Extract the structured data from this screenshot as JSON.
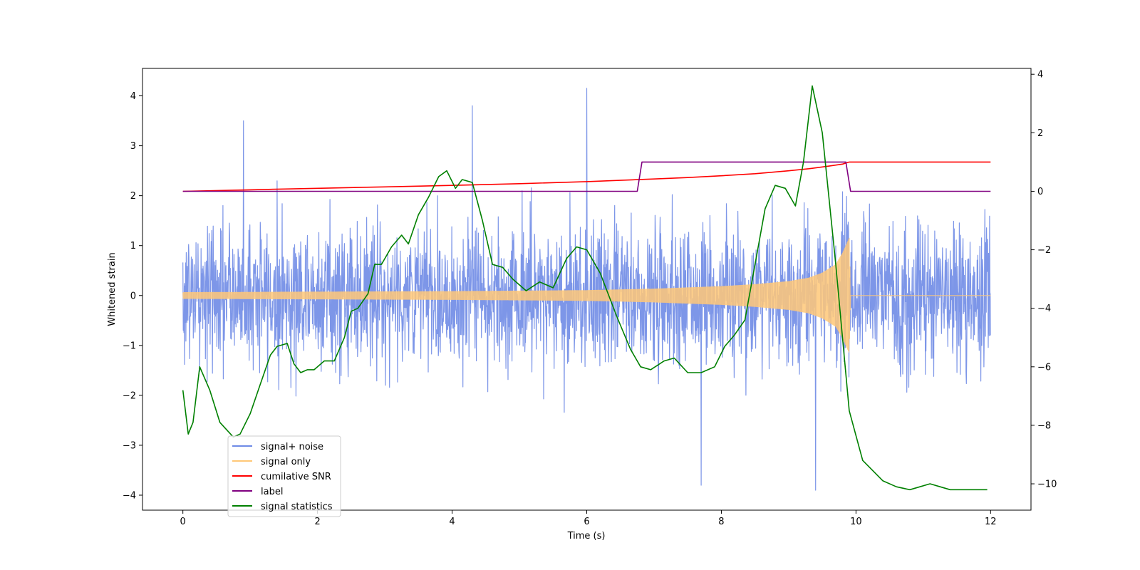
{
  "chart_data": {
    "type": "line",
    "xlabel": "Time (s)",
    "ylabel": "Whitened strain",
    "ylabel_right": "",
    "xlim": [
      -0.6,
      12.6
    ],
    "ylim": [
      -4.3,
      4.55
    ],
    "ylim_right": [
      -10.9,
      4.2
    ],
    "x_ticks": [
      0,
      2,
      4,
      6,
      8,
      10,
      12
    ],
    "y_ticks": [
      -4,
      -3,
      -2,
      -1,
      0,
      1,
      2,
      3,
      4
    ],
    "y_ticks_right": [
      -10,
      -8,
      -6,
      -4,
      -2,
      0,
      2,
      4
    ],
    "grid": false,
    "legend_position": "lower-left",
    "legend": [
      {
        "label": "signal+ noise",
        "color": "#6f8be6"
      },
      {
        "label": "signal only",
        "color": "#ffc878"
      },
      {
        "label": "cumilative SNR",
        "color": "#ff0000"
      },
      {
        "label": "label",
        "color": "#800080"
      },
      {
        "label": "signal statistics",
        "color": "#008000"
      }
    ],
    "series": [
      {
        "name": "signal+ noise",
        "axis": "left",
        "color": "#6f8be6",
        "description": "whitened noise, approx. range -3.9 to 4.2",
        "x_range": [
          0,
          12
        ],
        "noise_amplitude": 1.6,
        "peaks": [
          [
            6.0,
            4.15
          ],
          [
            4.3,
            3.8
          ],
          [
            9.4,
            -3.9
          ],
          [
            0.9,
            3.5
          ],
          [
            7.7,
            -3.8
          ]
        ]
      },
      {
        "name": "signal only",
        "axis": "left",
        "color": "#ffc878",
        "description": "chirp envelope growing to merger near t=9.9 s, then zero",
        "envelope_x": [
          0,
          2,
          4,
          6,
          7,
          8,
          8.5,
          9,
          9.3,
          9.5,
          9.7,
          9.8,
          9.9,
          9.92,
          12
        ],
        "envelope_y": [
          0.06,
          0.07,
          0.08,
          0.1,
          0.13,
          0.18,
          0.22,
          0.28,
          0.35,
          0.45,
          0.62,
          0.85,
          1.15,
          0,
          0
        ]
      },
      {
        "name": "cumilative SNR",
        "axis": "right",
        "color": "#ff0000",
        "x": [
          0,
          1,
          2,
          3,
          4,
          5,
          6,
          7,
          7.5,
          8,
          8.5,
          9,
          9.3,
          9.6,
          9.8,
          9.9,
          10,
          12
        ],
        "y": [
          0,
          0.05,
          0.1,
          0.15,
          0.2,
          0.26,
          0.33,
          0.42,
          0.47,
          0.53,
          0.6,
          0.7,
          0.77,
          0.86,
          0.93,
          1.0,
          1.0,
          1.0
        ]
      },
      {
        "name": "label",
        "axis": "right",
        "color": "#800080",
        "x": [
          0,
          6.75,
          6.82,
          9.85,
          9.92,
          12
        ],
        "y": [
          0,
          0,
          1,
          1,
          0,
          0
        ]
      },
      {
        "name": "signal statistics",
        "axis": "right",
        "color": "#008000",
        "x": [
          0,
          0.08,
          0.15,
          0.25,
          0.4,
          0.55,
          0.75,
          0.85,
          1.0,
          1.15,
          1.3,
          1.4,
          1.55,
          1.65,
          1.75,
          1.85,
          1.95,
          2.1,
          2.25,
          2.4,
          2.5,
          2.6,
          2.75,
          2.85,
          2.95,
          3.1,
          3.25,
          3.35,
          3.5,
          3.65,
          3.8,
          3.92,
          4.05,
          4.15,
          4.3,
          4.45,
          4.6,
          4.75,
          4.9,
          5.1,
          5.3,
          5.5,
          5.7,
          5.85,
          6.0,
          6.2,
          6.45,
          6.65,
          6.8,
          6.95,
          7.15,
          7.3,
          7.5,
          7.7,
          7.9,
          8.05,
          8.2,
          8.35,
          8.5,
          8.65,
          8.8,
          8.95,
          9.1,
          9.22,
          9.35,
          9.5,
          9.7,
          9.9,
          10.1,
          10.4,
          10.6,
          10.8,
          10.95,
          11.1,
          11.25,
          11.4,
          11.6,
          11.8,
          11.95
        ],
        "y": [
          -6.8,
          -8.3,
          -7.9,
          -6.0,
          -6.8,
          -7.9,
          -8.4,
          -8.3,
          -7.6,
          -6.6,
          -5.6,
          -5.3,
          -5.2,
          -5.9,
          -6.2,
          -6.1,
          -6.1,
          -5.8,
          -5.8,
          -5.0,
          -4.1,
          -4.0,
          -3.5,
          -2.5,
          -2.5,
          -1.9,
          -1.5,
          -1.8,
          -0.8,
          -0.2,
          0.5,
          0.7,
          0.1,
          0.4,
          0.3,
          -1.0,
          -2.5,
          -2.6,
          -3.0,
          -3.4,
          -3.1,
          -3.3,
          -2.3,
          -1.9,
          -2.0,
          -2.8,
          -4.3,
          -5.4,
          -6.0,
          -6.1,
          -5.8,
          -5.7,
          -6.2,
          -6.2,
          -6.0,
          -5.3,
          -4.9,
          -4.4,
          -2.5,
          -0.6,
          0.2,
          0.1,
          -0.5,
          1.0,
          3.6,
          2.0,
          -2.5,
          -7.5,
          -9.2,
          -9.9,
          -10.1,
          -10.2,
          -10.1,
          -10.0,
          -10.1,
          -10.2,
          -10.2,
          -10.2,
          -10.2
        ]
      }
    ]
  }
}
